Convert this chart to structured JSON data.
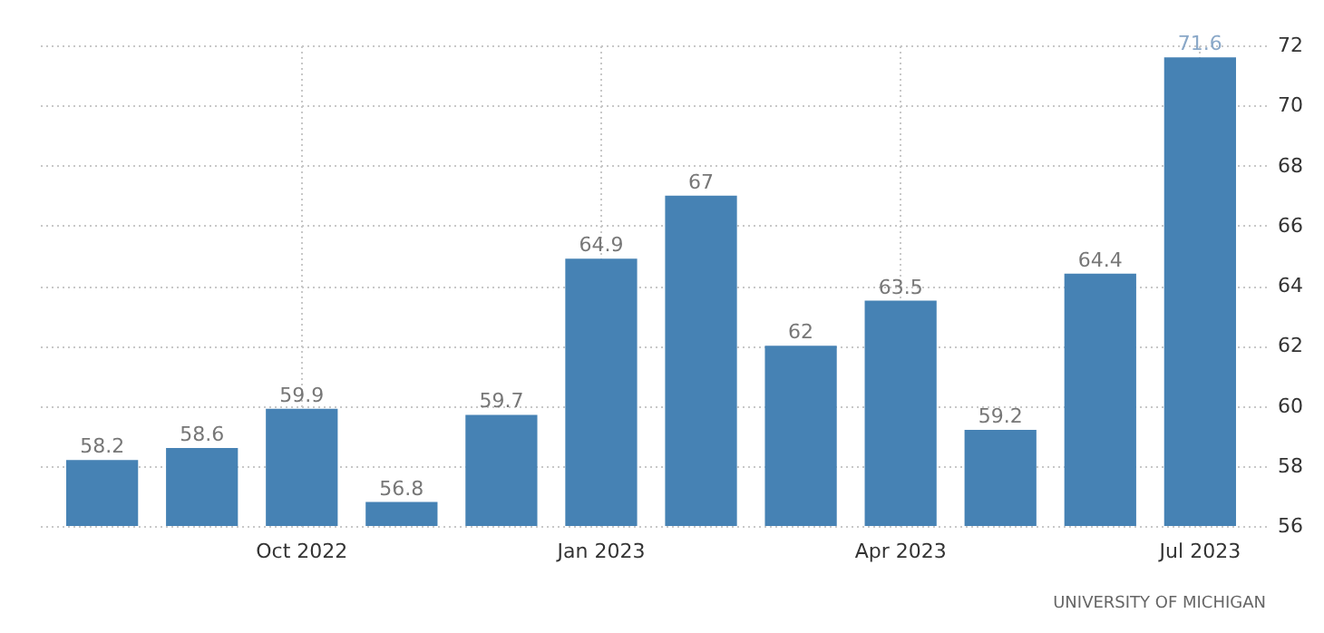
{
  "chart_data": {
    "type": "bar",
    "categories": [
      null,
      null,
      "Oct 2022",
      null,
      null,
      "Jan 2023",
      null,
      null,
      "Apr 2023",
      null,
      null,
      "Jul 2023"
    ],
    "values": [
      58.2,
      58.6,
      59.9,
      56.8,
      59.7,
      64.9,
      67,
      62,
      63.5,
      59.2,
      64.4,
      71.6
    ],
    "color": "#4682b4",
    "ylim": [
      56,
      72
    ],
    "yticks": [
      56,
      58,
      60,
      62,
      64,
      66,
      68,
      70,
      72
    ],
    "grid": true,
    "data_labels": true,
    "annotations": [
      "UNIVERSITY OF MICHIGAN"
    ]
  }
}
